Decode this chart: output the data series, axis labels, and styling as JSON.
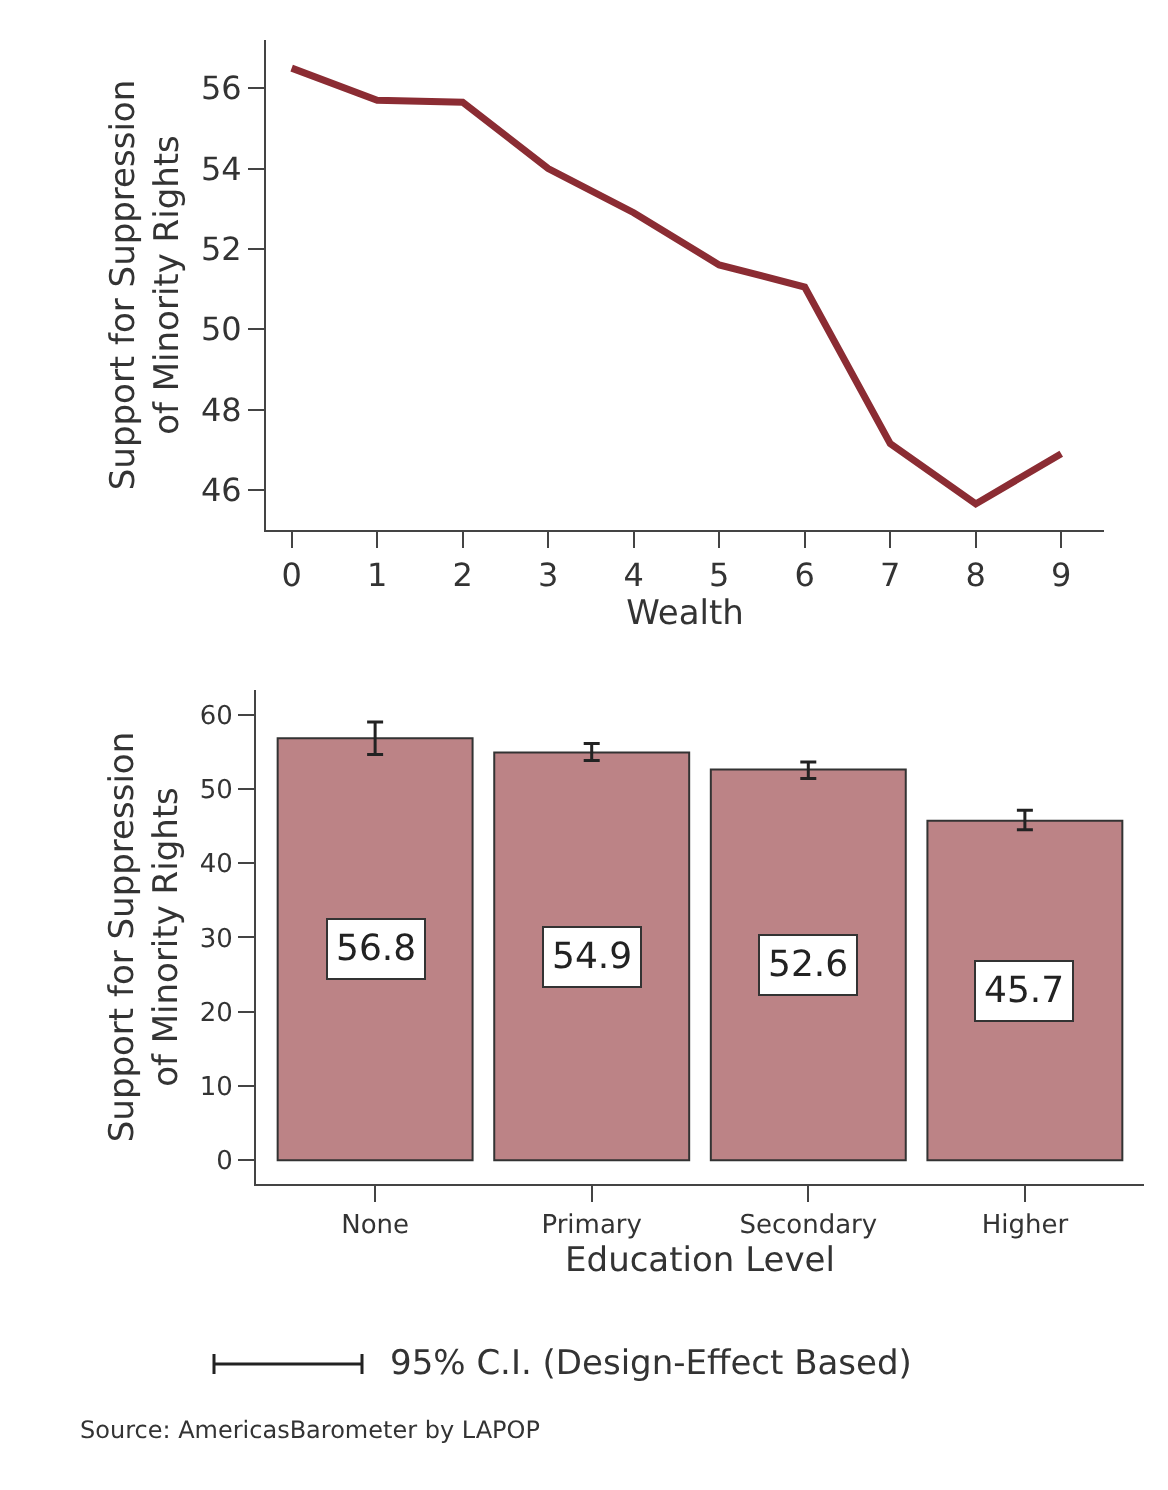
{
  "chart_data": [
    {
      "type": "line",
      "xlabel": "Wealth",
      "ylabel": "Support for Suppression\nof Minority Rights",
      "x": [
        0,
        1,
        2,
        3,
        4,
        5,
        6,
        7,
        8,
        9
      ],
      "series": [
        {
          "color": "#8b2c33",
          "values": [
            56.5,
            55.7,
            55.65,
            54.0,
            52.9,
            51.6,
            51.05,
            47.15,
            45.65,
            46.9
          ]
        }
      ],
      "xlim": [
        -0.3,
        9.5
      ],
      "xticks": [
        0,
        1,
        2,
        3,
        4,
        5,
        6,
        7,
        8,
        9
      ],
      "ylim": [
        45.0,
        57.2
      ],
      "yticks": [
        46,
        48,
        50,
        52,
        54,
        56
      ],
      "marker": "none",
      "line_style": "solid"
    },
    {
      "type": "bar",
      "xlabel": "Education Level",
      "ylabel": "Support for Suppression\nof Minority Rights",
      "categories": [
        "None",
        "Primary",
        "Secondary",
        "Higher"
      ],
      "values": [
        56.8,
        54.9,
        52.6,
        45.7
      ],
      "color": "#bc8386",
      "errors": [
        [
          54.6,
          59.0
        ],
        [
          53.8,
          56.1
        ],
        [
          51.4,
          53.6
        ],
        [
          44.5,
          47.1
        ]
      ],
      "data_labels": true,
      "ylim": [
        -3.2,
        63.3
      ],
      "yticks": [
        0,
        10,
        20,
        30,
        40,
        50,
        60
      ],
      "annotations": [
        "95% C.I. (Design-Effect Based)",
        "Source: AmericasBarometer by LAPOP"
      ]
    }
  ]
}
